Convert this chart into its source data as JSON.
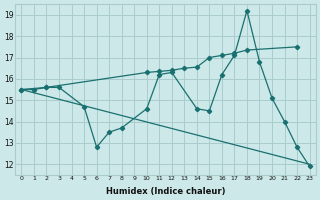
{
  "xlabel": "Humidex (Indice chaleur)",
  "bg_color": "#cce8e8",
  "grid_color": "#aacccc",
  "line_color": "#1a7070",
  "xlim": [
    -0.5,
    23.5
  ],
  "ylim": [
    11.5,
    19.5
  ],
  "xticks": [
    0,
    1,
    2,
    3,
    4,
    5,
    6,
    7,
    8,
    9,
    10,
    11,
    12,
    13,
    14,
    15,
    16,
    17,
    18,
    19,
    20,
    21,
    22,
    23
  ],
  "yticks": [
    12,
    13,
    14,
    15,
    16,
    17,
    18,
    19
  ],
  "line1_x": [
    0,
    1,
    2,
    3,
    5,
    6,
    7,
    8,
    10,
    11,
    12,
    14,
    15,
    16,
    17,
    18,
    19,
    20,
    21,
    22,
    23
  ],
  "line1_y": [
    15.5,
    15.5,
    15.6,
    15.6,
    14.7,
    12.8,
    13.5,
    13.7,
    14.6,
    16.2,
    16.3,
    14.6,
    14.5,
    16.2,
    17.1,
    19.2,
    16.8,
    15.1,
    14.0,
    12.8,
    11.9
  ],
  "line2_x": [
    0,
    2,
    10,
    11,
    12,
    13,
    14,
    15,
    16,
    17,
    18,
    22
  ],
  "line2_y": [
    15.5,
    15.6,
    16.3,
    16.35,
    16.4,
    16.5,
    16.55,
    17.0,
    17.1,
    17.2,
    17.35,
    17.5
  ],
  "line3_x": [
    0,
    23
  ],
  "line3_y": [
    15.5,
    12.0
  ]
}
